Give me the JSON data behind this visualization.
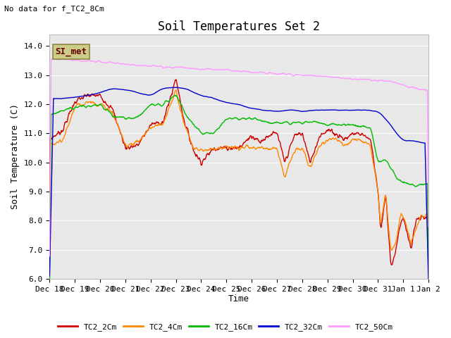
{
  "title": "Soil Temperatures Set 2",
  "subtitle": "No data for f_TC2_8Cm",
  "xlabel": "Time",
  "ylabel": "Soil Temperature (C)",
  "ylim": [
    6.0,
    14.4
  ],
  "yticks": [
    6.0,
    7.0,
    8.0,
    9.0,
    10.0,
    11.0,
    12.0,
    13.0,
    14.0
  ],
  "xtick_labels": [
    "Dec 18",
    "Dec 19",
    "Dec 20",
    "Dec 21",
    "Dec 22",
    "Dec 23",
    "Dec 24",
    "Dec 25",
    "Dec 26",
    "Dec 27",
    "Dec 28",
    "Dec 29",
    "Dec 30",
    "Dec 31",
    "Jan 1",
    "Jan 2"
  ],
  "series_colors": {
    "TC2_2Cm": "#cc0000",
    "TC2_4Cm": "#ff8800",
    "TC2_16Cm": "#00bb00",
    "TC2_32Cm": "#0000cc",
    "TC2_50Cm": "#ff99ff"
  },
  "plot_bg_color": "#e8e8e8",
  "grid_color": "#ffffff",
  "legend_box_facecolor": "#cccc88",
  "legend_box_edgecolor": "#888844",
  "legend_box_text": "SI_met",
  "legend_text_color": "#660000",
  "title_fontsize": 12,
  "axis_fontsize": 9,
  "tick_fontsize": 8,
  "line_width": 1.0
}
